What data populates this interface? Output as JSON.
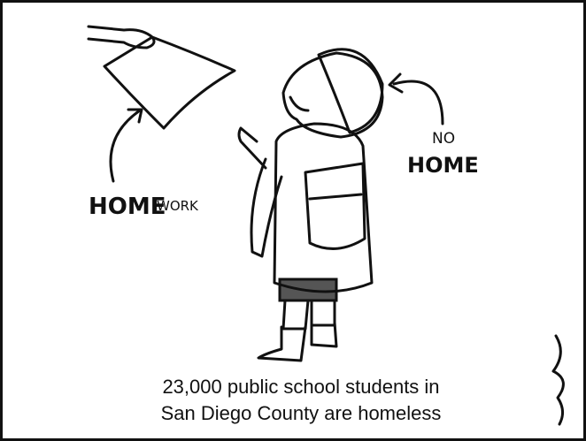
{
  "left_label": {
    "big": "HOME",
    "small": "WORK"
  },
  "right_label": {
    "top": "NO",
    "bottom": "HOME"
  },
  "caption": {
    "lines": [
      "23,000 public school students in",
      "San Diego County are homeless"
    ]
  }
}
